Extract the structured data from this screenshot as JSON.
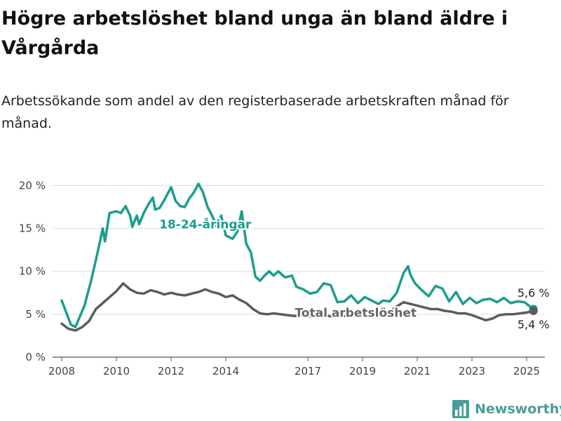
{
  "header": {
    "title": "Högre arbetslöshet bland unga än bland äldre i Vårgårda",
    "subtitle": "Arbetssökande som andel av den registerbaserade arbetskraften månad för månad."
  },
  "brand": {
    "name": "Newsworthy",
    "icon": "bar-chart-logo-icon",
    "color": "#4a9d96"
  },
  "chart_data": {
    "type": "line",
    "x_axis": {
      "type": "date",
      "min": "2007-09",
      "max": "2025-09",
      "tick_labels": [
        "2008",
        "2010",
        "2012",
        "2014",
        "2017",
        "2019",
        "2021",
        "2023",
        "2025"
      ]
    },
    "y_axis": {
      "min": 0,
      "max": 22,
      "ticks": [
        0,
        5,
        10,
        15,
        20
      ],
      "tick_labels": [
        "0 %",
        "5 %",
        "10 %",
        "15 %",
        "20 %"
      ]
    },
    "grid": "horizontal",
    "series": [
      {
        "name": "18-24-åringar",
        "color": "#1a9e8f",
        "label": "18-24-åringar",
        "end_label": "5,6 %",
        "points": [
          [
            "2008-01",
            6.6
          ],
          [
            "2008-05",
            3.8
          ],
          [
            "2008-07",
            3.5
          ],
          [
            "2008-11",
            6.0
          ],
          [
            "2009-02",
            9.0
          ],
          [
            "2009-05",
            12.5
          ],
          [
            "2009-07",
            15.0
          ],
          [
            "2009-08",
            13.5
          ],
          [
            "2009-10",
            16.8
          ],
          [
            "2010-01",
            17.0
          ],
          [
            "2010-03",
            16.8
          ],
          [
            "2010-05",
            17.6
          ],
          [
            "2010-07",
            16.5
          ],
          [
            "2010-08",
            15.2
          ],
          [
            "2010-10",
            16.5
          ],
          [
            "2010-11",
            15.5
          ],
          [
            "2011-01",
            16.8
          ],
          [
            "2011-03",
            17.8
          ],
          [
            "2011-05",
            18.6
          ],
          [
            "2011-06",
            17.2
          ],
          [
            "2011-08",
            17.4
          ],
          [
            "2011-10",
            18.3
          ],
          [
            "2012-01",
            19.8
          ],
          [
            "2012-03",
            18.2
          ],
          [
            "2012-05",
            17.6
          ],
          [
            "2012-07",
            17.5
          ],
          [
            "2012-09",
            18.5
          ],
          [
            "2012-11",
            19.2
          ],
          [
            "2013-01",
            20.2
          ],
          [
            "2013-03",
            19.2
          ],
          [
            "2013-05",
            17.5
          ],
          [
            "2013-07",
            16.5
          ],
          [
            "2013-09",
            15.2
          ],
          [
            "2013-11",
            16.5
          ],
          [
            "2014-01",
            14.2
          ],
          [
            "2014-04",
            13.8
          ],
          [
            "2014-06",
            14.6
          ],
          [
            "2014-08",
            17.0
          ],
          [
            "2014-10",
            13.2
          ],
          [
            "2014-12",
            12.2
          ],
          [
            "2015-02",
            9.4
          ],
          [
            "2015-04",
            8.9
          ],
          [
            "2015-06",
            9.5
          ],
          [
            "2015-08",
            10.0
          ],
          [
            "2015-10",
            9.5
          ],
          [
            "2015-12",
            10.0
          ],
          [
            "2016-03",
            9.3
          ],
          [
            "2016-06",
            9.5
          ],
          [
            "2016-08",
            8.2
          ],
          [
            "2016-11",
            7.9
          ],
          [
            "2017-02",
            7.4
          ],
          [
            "2017-05",
            7.6
          ],
          [
            "2017-08",
            8.6
          ],
          [
            "2017-11",
            8.4
          ],
          [
            "2018-02",
            6.4
          ],
          [
            "2018-05",
            6.5
          ],
          [
            "2018-08",
            7.2
          ],
          [
            "2018-11",
            6.3
          ],
          [
            "2019-02",
            7.0
          ],
          [
            "2019-05",
            6.6
          ],
          [
            "2019-08",
            6.2
          ],
          [
            "2019-10",
            6.6
          ],
          [
            "2020-01",
            6.5
          ],
          [
            "2020-04",
            7.5
          ],
          [
            "2020-07",
            9.8
          ],
          [
            "2020-09",
            10.6
          ],
          [
            "2020-10",
            9.6
          ],
          [
            "2020-12",
            8.6
          ],
          [
            "2021-03",
            7.8
          ],
          [
            "2021-06",
            7.1
          ],
          [
            "2021-09",
            8.3
          ],
          [
            "2021-12",
            8.0
          ],
          [
            "2022-03",
            6.5
          ],
          [
            "2022-06",
            7.6
          ],
          [
            "2022-09",
            6.2
          ],
          [
            "2022-12",
            6.9
          ],
          [
            "2023-03",
            6.3
          ],
          [
            "2023-06",
            6.7
          ],
          [
            "2023-09",
            6.8
          ],
          [
            "2023-12",
            6.4
          ],
          [
            "2024-03",
            6.9
          ],
          [
            "2024-06",
            6.3
          ],
          [
            "2024-09",
            6.5
          ],
          [
            "2024-12",
            6.4
          ],
          [
            "2025-04",
            5.6
          ]
        ]
      },
      {
        "name": "Total arbetslöshet",
        "color": "#5c5c5c",
        "label": "Total arbetslöshet",
        "end_label": "5,4 %",
        "points": [
          [
            "2008-01",
            3.9
          ],
          [
            "2008-04",
            3.3
          ],
          [
            "2008-07",
            3.1
          ],
          [
            "2008-10",
            3.5
          ],
          [
            "2009-01",
            4.2
          ],
          [
            "2009-04",
            5.6
          ],
          [
            "2009-07",
            6.3
          ],
          [
            "2009-10",
            7.0
          ],
          [
            "2010-01",
            7.7
          ],
          [
            "2010-04",
            8.6
          ],
          [
            "2010-07",
            7.9
          ],
          [
            "2010-10",
            7.5
          ],
          [
            "2011-01",
            7.4
          ],
          [
            "2011-04",
            7.8
          ],
          [
            "2011-07",
            7.6
          ],
          [
            "2011-10",
            7.3
          ],
          [
            "2012-01",
            7.5
          ],
          [
            "2012-04",
            7.3
          ],
          [
            "2012-07",
            7.2
          ],
          [
            "2012-10",
            7.4
          ],
          [
            "2013-01",
            7.6
          ],
          [
            "2013-04",
            7.9
          ],
          [
            "2013-07",
            7.6
          ],
          [
            "2013-10",
            7.4
          ],
          [
            "2014-01",
            7.0
          ],
          [
            "2014-04",
            7.2
          ],
          [
            "2014-07",
            6.7
          ],
          [
            "2014-10",
            6.3
          ],
          [
            "2015-01",
            5.6
          ],
          [
            "2015-04",
            5.1
          ],
          [
            "2015-07",
            5.0
          ],
          [
            "2015-10",
            5.1
          ],
          [
            "2016-01",
            5.0
          ],
          [
            "2016-04",
            4.9
          ],
          [
            "2016-07",
            4.8
          ],
          [
            "2016-10",
            4.8
          ],
          [
            "2017-01",
            4.8
          ],
          [
            "2017-04",
            4.7
          ],
          [
            "2017-07",
            4.9
          ],
          [
            "2017-10",
            4.8
          ],
          [
            "2018-01",
            4.7
          ],
          [
            "2018-04",
            4.7
          ],
          [
            "2018-07",
            4.9
          ],
          [
            "2018-10",
            4.8
          ],
          [
            "2019-01",
            4.8
          ],
          [
            "2019-04",
            4.9
          ],
          [
            "2019-07",
            5.1
          ],
          [
            "2019-10",
            5.2
          ],
          [
            "2020-01",
            5.3
          ],
          [
            "2020-04",
            5.9
          ],
          [
            "2020-07",
            6.4
          ],
          [
            "2020-10",
            6.2
          ],
          [
            "2021-01",
            6.0
          ],
          [
            "2021-04",
            5.8
          ],
          [
            "2021-07",
            5.6
          ],
          [
            "2021-10",
            5.6
          ],
          [
            "2022-01",
            5.4
          ],
          [
            "2022-04",
            5.3
          ],
          [
            "2022-07",
            5.1
          ],
          [
            "2022-10",
            5.1
          ],
          [
            "2023-01",
            4.9
          ],
          [
            "2023-04",
            4.6
          ],
          [
            "2023-07",
            4.3
          ],
          [
            "2023-10",
            4.5
          ],
          [
            "2024-01",
            4.9
          ],
          [
            "2024-04",
            5.0
          ],
          [
            "2024-07",
            5.0
          ],
          [
            "2024-10",
            5.1
          ],
          [
            "2025-01",
            5.2
          ],
          [
            "2025-04",
            5.4
          ]
        ]
      }
    ]
  }
}
